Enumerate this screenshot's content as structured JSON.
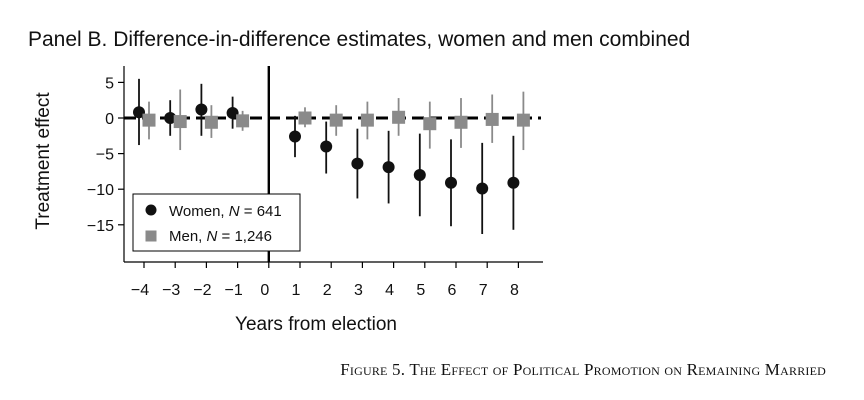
{
  "panel_title": "Panel B. Difference-in-difference estimates, women and men combined",
  "figure_caption": "Figure 5. The Effect of Political Promotion on Remaining Married",
  "colors": {
    "women": "#111111",
    "men": "#8a8a8a",
    "axis": "#000000"
  },
  "chart_data": {
    "type": "scatter",
    "xlabel": "Years from election",
    "ylabel": "Treatment effect",
    "xlim": [
      -4,
      8
    ],
    "ylim": [
      -20,
      7
    ],
    "x_ticks": [
      -4,
      -3,
      -2,
      -1,
      0,
      1,
      2,
      3,
      4,
      5,
      6,
      7,
      8
    ],
    "x_tick_labels": [
      "−4",
      "−3",
      "−2",
      "−1",
      "0",
      "1",
      "2",
      "3",
      "4",
      "5",
      "6",
      "7",
      "8"
    ],
    "y_ticks": [
      5,
      0,
      -5,
      -10,
      -15
    ],
    "y_tick_labels": [
      "5",
      "0",
      "−5",
      "−10",
      "−15"
    ],
    "reference_lines": {
      "horizontal_dashed_at_y": 0,
      "vertical_solid_at_x": 0
    },
    "legend_position": "bottom-left",
    "series": [
      {
        "name": "Women",
        "n_label": "N = 641",
        "marker": "circle",
        "points": [
          {
            "x": -4,
            "y": 0.8,
            "lo": -3.8,
            "hi": 5.5
          },
          {
            "x": -3,
            "y": 0.0,
            "lo": -2.5,
            "hi": 2.5
          },
          {
            "x": -2,
            "y": 1.2,
            "lo": -2.5,
            "hi": 4.8
          },
          {
            "x": -1,
            "y": 0.7,
            "lo": -1.5,
            "hi": 3.0
          },
          {
            "x": 1,
            "y": -2.6,
            "lo": -5.5,
            "hi": 0.3
          },
          {
            "x": 2,
            "y": -4.0,
            "lo": -7.8,
            "hi": -0.5
          },
          {
            "x": 3,
            "y": -6.4,
            "lo": -11.3,
            "hi": -1.5
          },
          {
            "x": 4,
            "y": -6.9,
            "lo": -12.0,
            "hi": -1.8
          },
          {
            "x": 5,
            "y": -8.0,
            "lo": -13.8,
            "hi": -2.2
          },
          {
            "x": 6,
            "y": -9.1,
            "lo": -15.2,
            "hi": -3.0
          },
          {
            "x": 7,
            "y": -9.9,
            "lo": -16.3,
            "hi": -3.5
          },
          {
            "x": 8,
            "y": -9.1,
            "lo": -15.7,
            "hi": -2.5
          }
        ]
      },
      {
        "name": "Men",
        "n_label": "N = 1,246",
        "marker": "square",
        "points": [
          {
            "x": -4,
            "y": -0.3,
            "lo": -3.0,
            "hi": 2.3
          },
          {
            "x": -3,
            "y": -0.5,
            "lo": -4.5,
            "hi": 4.0
          },
          {
            "x": -2,
            "y": -0.6,
            "lo": -2.8,
            "hi": 1.8
          },
          {
            "x": -1,
            "y": -0.4,
            "lo": -1.8,
            "hi": 1.0
          },
          {
            "x": 1,
            "y": 0.0,
            "lo": -1.3,
            "hi": 1.5
          },
          {
            "x": 2,
            "y": -0.3,
            "lo": -2.5,
            "hi": 1.8
          },
          {
            "x": 3,
            "y": -0.3,
            "lo": -3.0,
            "hi": 2.3
          },
          {
            "x": 4,
            "y": 0.1,
            "lo": -2.5,
            "hi": 2.8
          },
          {
            "x": 5,
            "y": -0.8,
            "lo": -4.3,
            "hi": 2.3
          },
          {
            "x": 6,
            "y": -0.6,
            "lo": -4.2,
            "hi": 2.8
          },
          {
            "x": 7,
            "y": -0.2,
            "lo": -3.5,
            "hi": 3.3
          },
          {
            "x": 8,
            "y": -0.3,
            "lo": -4.5,
            "hi": 3.7
          }
        ]
      }
    ]
  }
}
